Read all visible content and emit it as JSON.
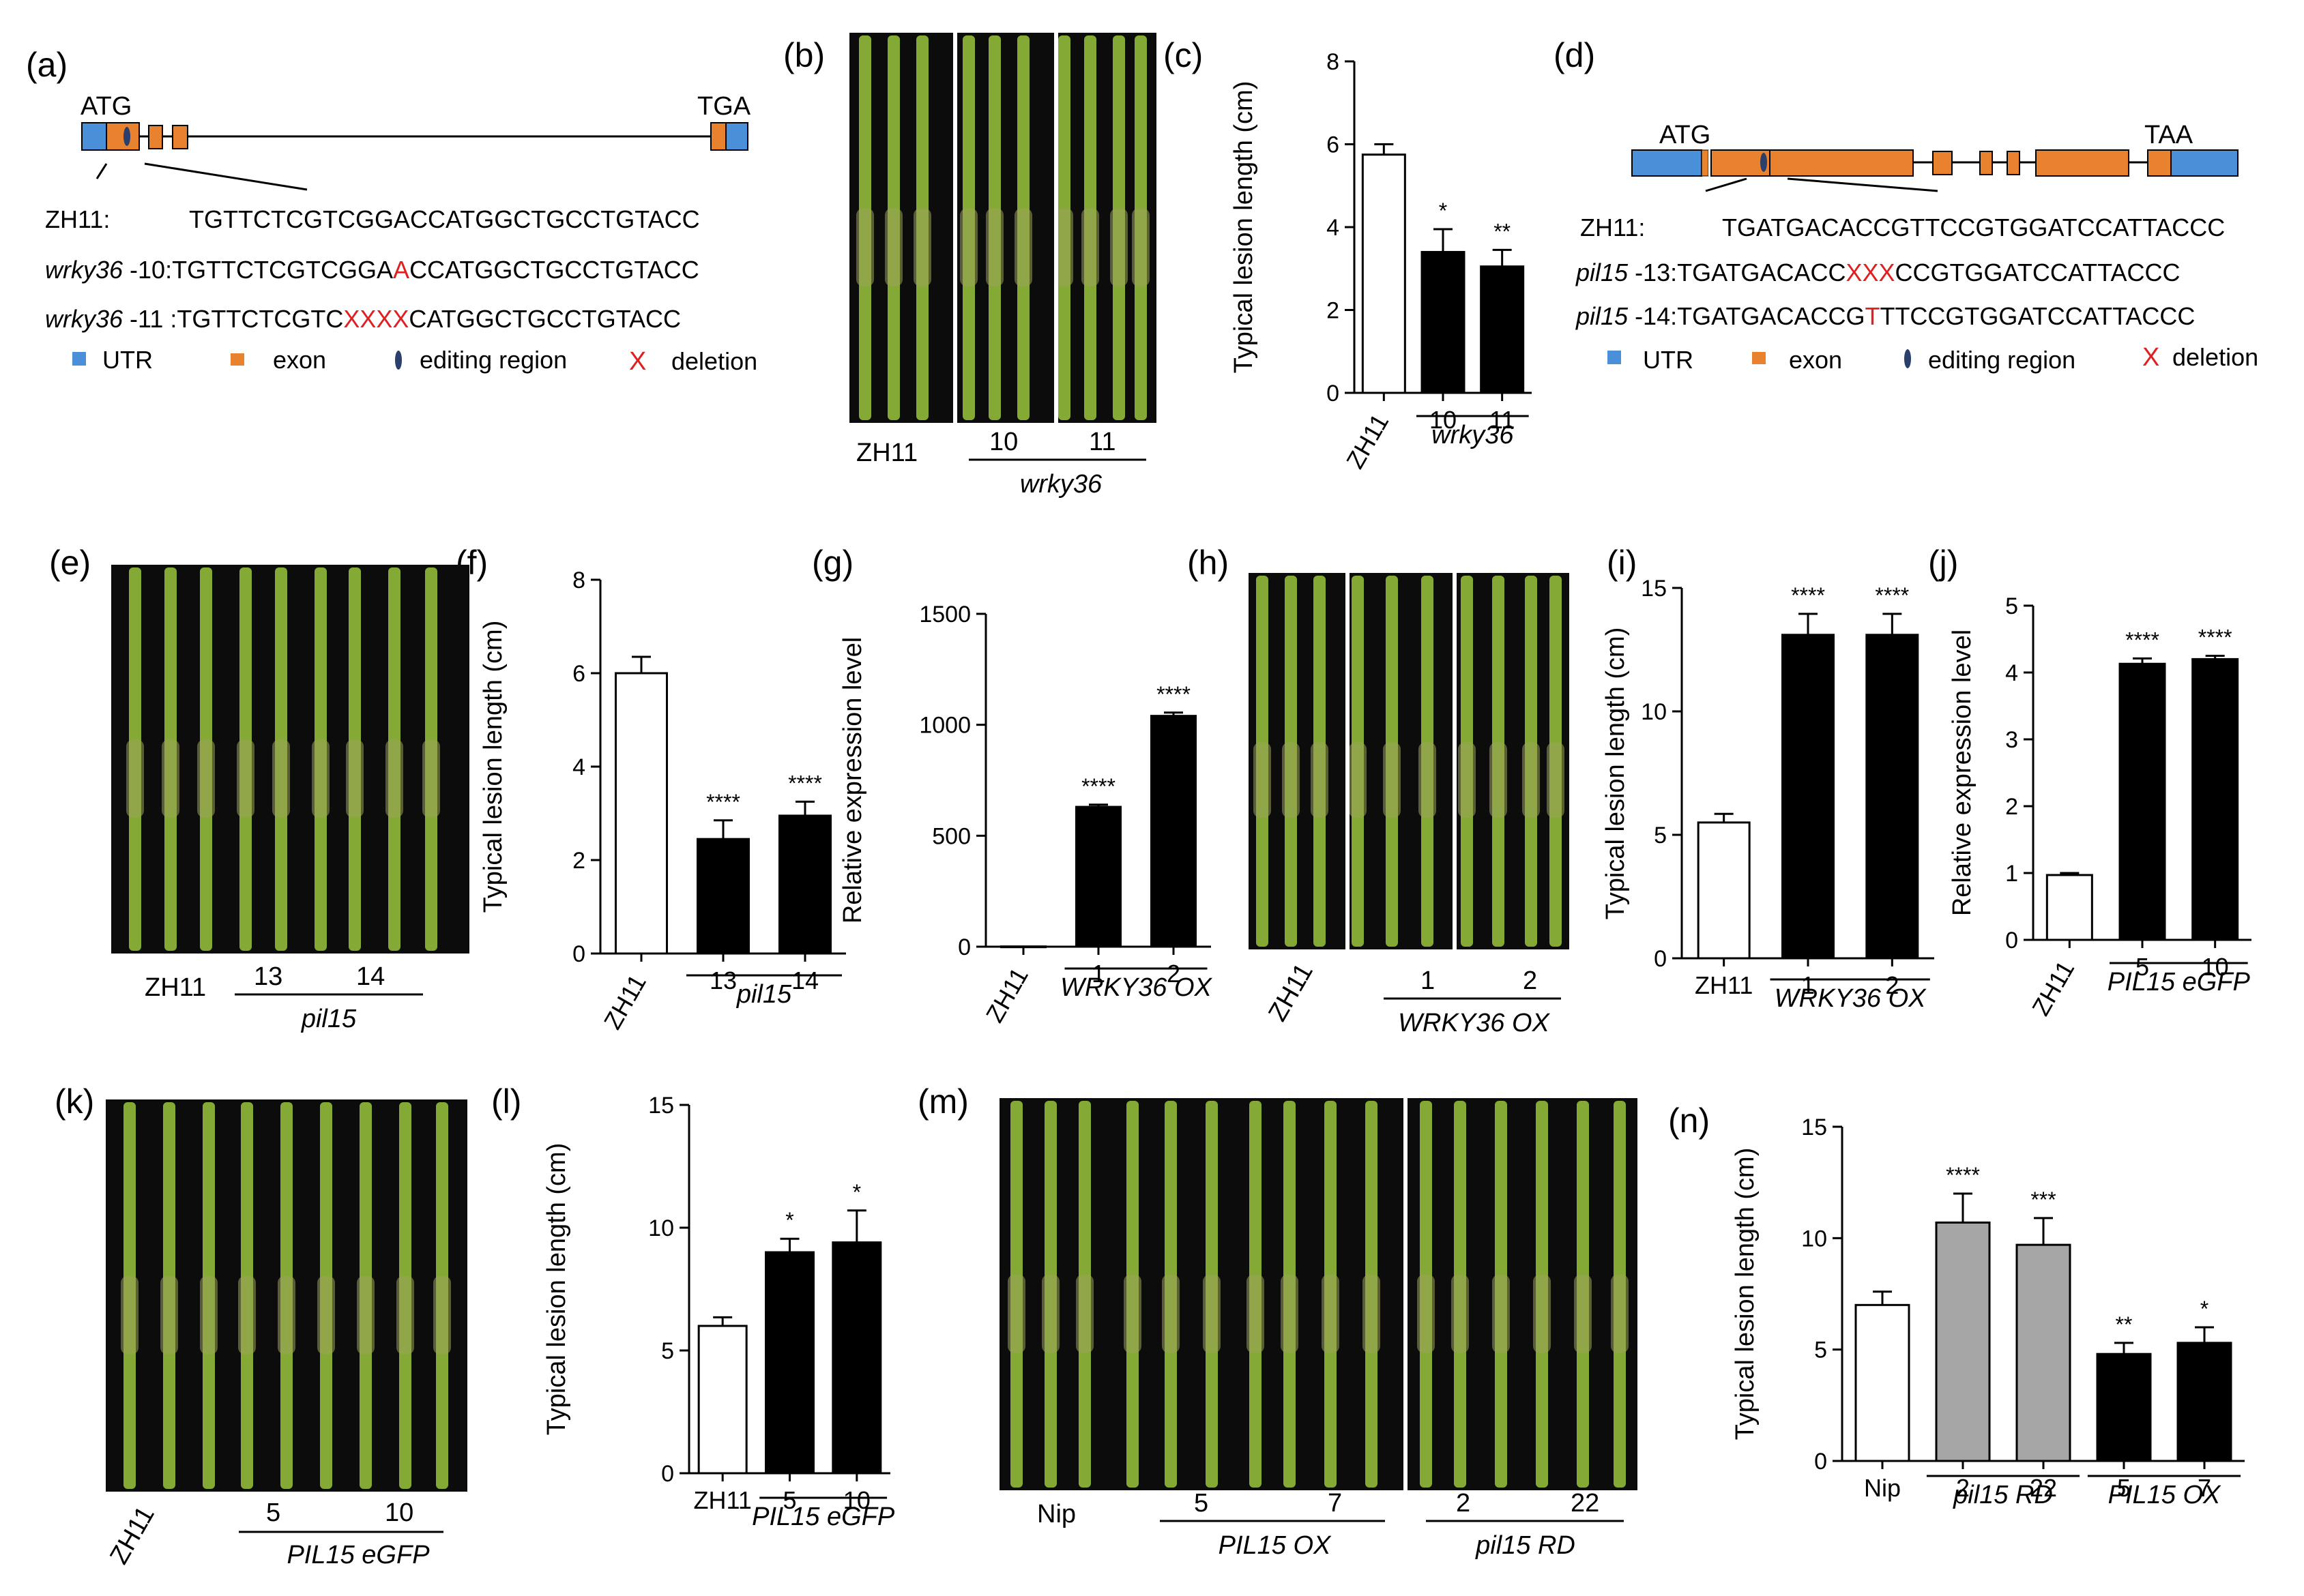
{
  "colors": {
    "utr": "#4a90d9",
    "exon": "#e8822e",
    "deletion": "#e02020",
    "bar_black": "#000000",
    "bar_white": "#ffffff",
    "bar_gray": "#a6a6a6",
    "plant": "#8fb83a",
    "photo_bg": "#0c0c0c"
  },
  "panel_labels": [
    "(a)",
    "(b)",
    "(c)",
    "(d)",
    "(e)",
    "(f)",
    "(g)",
    "(h)",
    "(i)",
    "(j)",
    "(k)",
    "(l)",
    "(m)",
    "(n)"
  ],
  "panel_a": {
    "atg": "ATG",
    "stop": "TGA",
    "rows": [
      {
        "prefix": "ZH11:",
        "italic": "",
        "suffix": "",
        "seq_before": "TGTTCTCGTCGGACCATGGCTGCCTGTACC",
        "red": "",
        "seq_after": ""
      },
      {
        "prefix": "",
        "italic": "wrky36",
        "suffix": " -10:",
        "seq_before": "TGTTCTCGTCGGA",
        "red": "A",
        "seq_after": "CCATGGCTGCCTGTACC"
      },
      {
        "prefix": "",
        "italic": "wrky36",
        "suffix": " -11 :",
        "seq_before": "TGTTCTCGTC",
        "red": "XXXX",
        "seq_after": "CATGGCTGCCTGTACC"
      }
    ],
    "legend": {
      "utr": "UTR",
      "exon": "exon",
      "editing": "editing region",
      "deletion_mark": "X",
      "deletion": "deletion"
    }
  },
  "panel_d": {
    "atg": "ATG",
    "stop": "TAA",
    "rows": [
      {
        "prefix": "ZH11:",
        "italic": "",
        "suffix": "",
        "seq_before": "TGATGACACCGTTCCGTGGATCCATTACCC",
        "red": "",
        "seq_after": ""
      },
      {
        "prefix": "",
        "italic": "pil15",
        "suffix": " -13:",
        "seq_before": "TGATGACACC",
        "red": "XXX",
        "seq_after": "CCGTGGATCCATTACCC"
      },
      {
        "prefix": "",
        "italic": "pil15",
        "suffix": " -14:",
        "seq_before": "TGATGACACCG",
        "red": "T",
        "seq_after": "TTCCGTGGATCCATTACCC"
      }
    ],
    "legend": {
      "utr": "UTR",
      "exon": "exon",
      "editing": "editing region",
      "deletion_mark": "X",
      "deletion": "deletion"
    }
  },
  "photos": {
    "b": {
      "labels": [
        "ZH11",
        "10",
        "11"
      ],
      "group": "wrky36"
    },
    "e": {
      "labels": [
        "ZH11",
        "13",
        "14"
      ],
      "group": "pil15"
    },
    "h": {
      "labels": [
        "ZH11",
        "1",
        "2"
      ],
      "group": "WRKY36 OX"
    },
    "k": {
      "labels": [
        "ZH11",
        "5",
        "10"
      ],
      "group": "PIL15 eGFP"
    },
    "m": {
      "labels": [
        "Nip",
        "5",
        "7",
        "2",
        "22"
      ],
      "groups": [
        "PIL15 OX",
        "pil15 RD"
      ]
    }
  },
  "chart_data": [
    {
      "id": "c",
      "type": "bar",
      "ylabel": "Typical lesion length (cm)",
      "ylim": [
        0,
        8
      ],
      "yticks": [
        0,
        2,
        4,
        6,
        8
      ],
      "categories": [
        "ZH11",
        "10",
        "11"
      ],
      "values": [
        5.75,
        3.4,
        3.05
      ],
      "errors": [
        0.25,
        0.55,
        0.4
      ],
      "fills": [
        "white",
        "black",
        "black"
      ],
      "significance": [
        "",
        "*",
        "**"
      ],
      "groups": [
        {
          "label": "wrky36",
          "from": 1,
          "to": 2
        }
      ]
    },
    {
      "id": "f",
      "type": "bar",
      "ylabel": "Typical lesion length (cm)",
      "ylim": [
        0,
        8
      ],
      "yticks": [
        0,
        2,
        4,
        6,
        8
      ],
      "categories": [
        "ZH11",
        "13",
        "14"
      ],
      "values": [
        6.0,
        2.45,
        2.95
      ],
      "errors": [
        0.35,
        0.4,
        0.3
      ],
      "fills": [
        "white",
        "black",
        "black"
      ],
      "significance": [
        "",
        "****",
        "****"
      ],
      "groups": [
        {
          "label": "pil15",
          "from": 1,
          "to": 2
        }
      ]
    },
    {
      "id": "g",
      "type": "bar",
      "ylabel": "Relative expression level",
      "ylim": [
        0,
        1500
      ],
      "yticks": [
        0,
        500,
        1000,
        1500
      ],
      "categories": [
        "ZH11",
        "1",
        "2"
      ],
      "values": [
        1,
        630,
        1040
      ],
      "errors": [
        0,
        10,
        15
      ],
      "fills": [
        "white",
        "black",
        "black"
      ],
      "significance": [
        "",
        "****",
        "****"
      ],
      "groups": [
        {
          "label": "WRKY36 OX",
          "from": 1,
          "to": 2
        }
      ]
    },
    {
      "id": "i",
      "type": "bar",
      "ylabel": "Typical lesion length (cm)",
      "ylim": [
        0,
        15
      ],
      "yticks": [
        0,
        5,
        10,
        15
      ],
      "categories": [
        "ZH11",
        "1",
        "2"
      ],
      "values": [
        5.5,
        13.1,
        13.1
      ],
      "errors": [
        0.35,
        0.85,
        0.85
      ],
      "fills": [
        "white",
        "black",
        "black"
      ],
      "significance": [
        "",
        "****",
        "****"
      ],
      "groups": [
        {
          "label": "WRKY36 OX",
          "from": 1,
          "to": 2
        }
      ]
    },
    {
      "id": "j",
      "type": "bar",
      "ylabel": "Relative expression level",
      "ylim": [
        0,
        5
      ],
      "yticks": [
        0,
        1,
        2,
        3,
        4,
        5
      ],
      "categories": [
        "ZH11",
        "5",
        "10"
      ],
      "values": [
        0.97,
        4.13,
        4.2
      ],
      "errors": [
        0.03,
        0.08,
        0.05
      ],
      "fills": [
        "white",
        "black",
        "black"
      ],
      "significance": [
        "",
        "****",
        "****"
      ],
      "groups": [
        {
          "label": "PIL15 eGFP",
          "from": 1,
          "to": 2
        }
      ]
    },
    {
      "id": "l",
      "type": "bar",
      "ylabel": "Typical lesion length (cm)",
      "ylim": [
        0,
        15
      ],
      "yticks": [
        0,
        5,
        10,
        15
      ],
      "categories": [
        "ZH11",
        "5",
        "10"
      ],
      "values": [
        6.0,
        9.0,
        9.4
      ],
      "errors": [
        0.35,
        0.55,
        1.3
      ],
      "fills": [
        "white",
        "black",
        "black"
      ],
      "significance": [
        "",
        "*",
        "*"
      ],
      "groups": [
        {
          "label": "PIL15 eGFP",
          "from": 1,
          "to": 2
        }
      ]
    },
    {
      "id": "n",
      "type": "bar",
      "ylabel": "Typical lesion length (cm)",
      "ylim": [
        0,
        15
      ],
      "yticks": [
        0,
        5,
        10,
        15
      ],
      "categories": [
        "Nip",
        "2",
        "22",
        "5",
        "7"
      ],
      "values": [
        7.0,
        10.7,
        9.7,
        4.8,
        5.3
      ],
      "errors": [
        0.6,
        1.3,
        1.2,
        0.5,
        0.7
      ],
      "fills": [
        "white",
        "gray",
        "gray",
        "black",
        "black"
      ],
      "significance": [
        "",
        "****",
        "***",
        "**",
        "*"
      ],
      "groups": [
        {
          "label": "pil15 RD",
          "from": 1,
          "to": 2
        },
        {
          "label": "PIL15 OX",
          "from": 3,
          "to": 4
        }
      ]
    }
  ]
}
